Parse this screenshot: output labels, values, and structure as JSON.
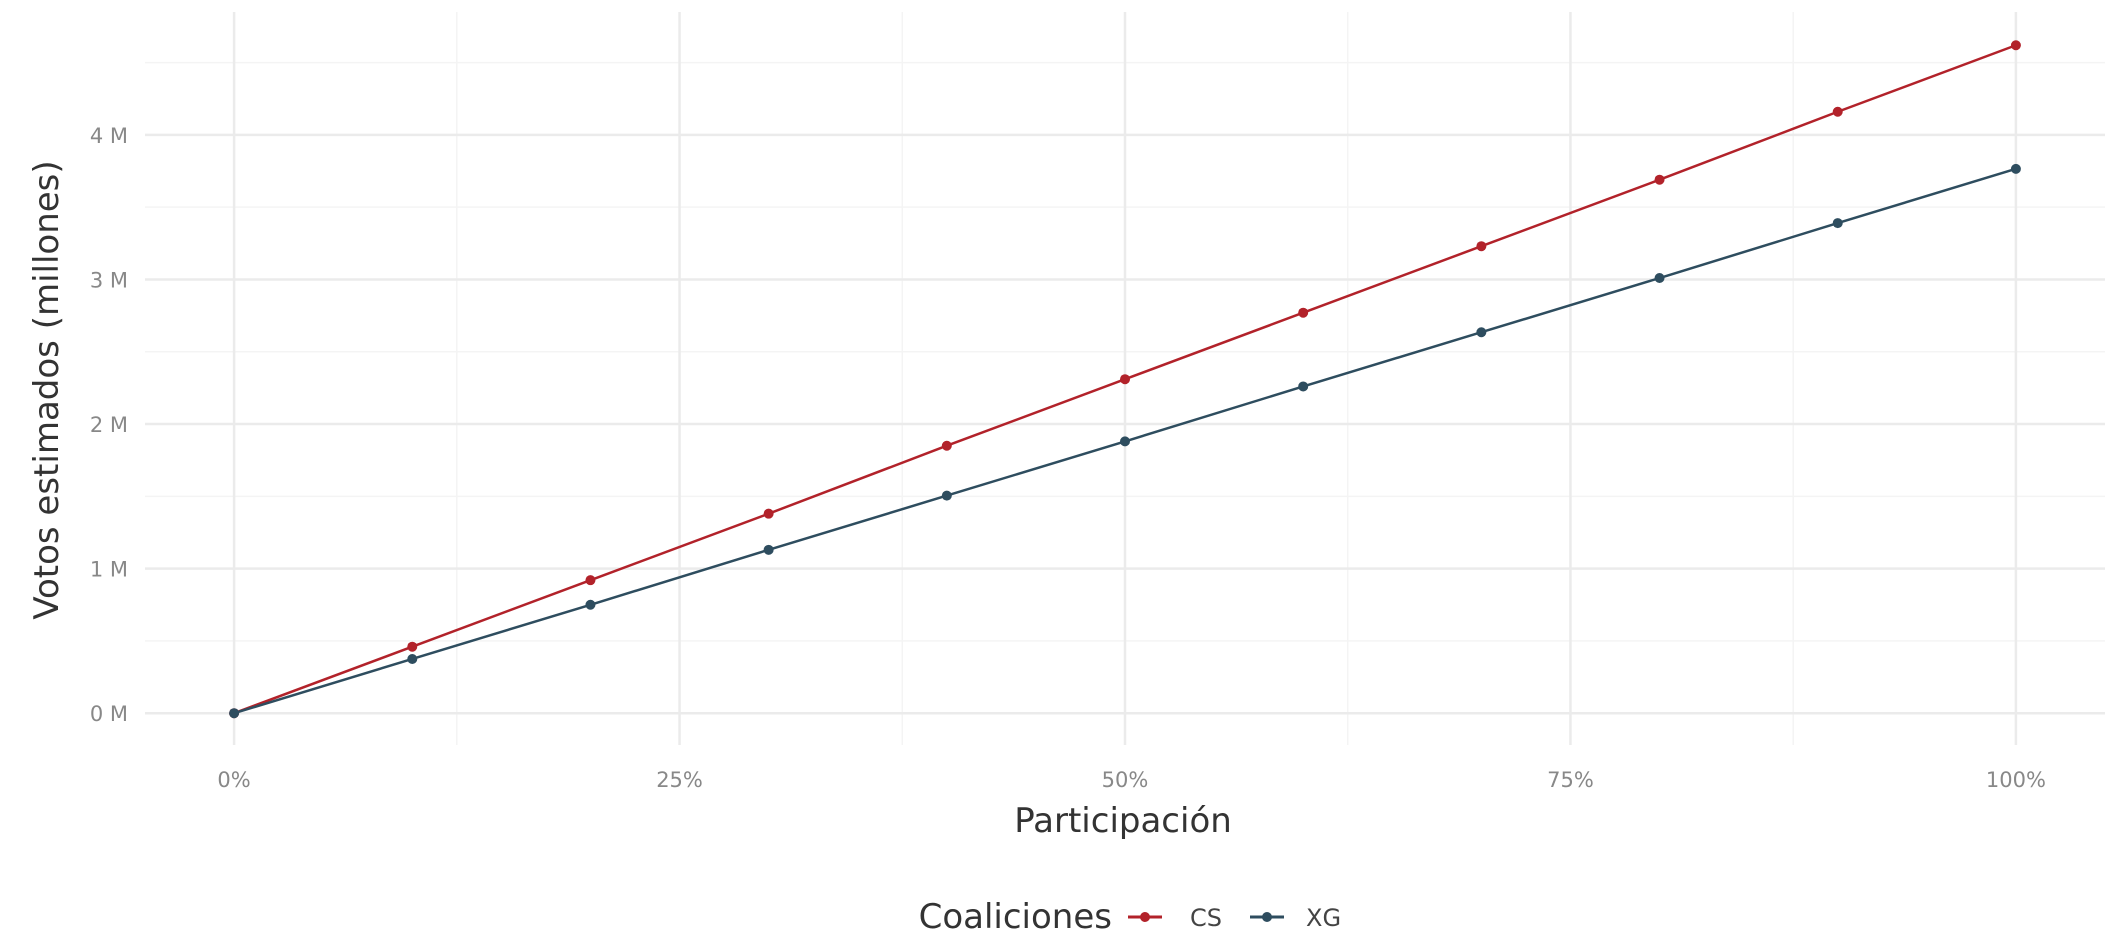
{
  "chart_data": {
    "type": "line",
    "xlabel": "Participación",
    "ylabel": "Votos estimados (millones)",
    "x": [
      0,
      10,
      20,
      30,
      40,
      50,
      60,
      70,
      80,
      90,
      100
    ],
    "series": [
      {
        "name": "CS",
        "color": "#b2222a",
        "values": [
          0,
          0.46,
          0.92,
          1.38,
          1.85,
          2.31,
          2.77,
          3.23,
          3.69,
          4.16,
          4.62
        ]
      },
      {
        "name": "XG",
        "color": "#2e4d5f",
        "values": [
          0,
          0.375,
          0.75,
          1.13,
          1.505,
          1.88,
          2.26,
          2.635,
          3.01,
          3.39,
          3.765
        ]
      }
    ],
    "xlim": [
      -5,
      105
    ],
    "ylim": [
      -0.22,
      4.85
    ],
    "x_ticks": [
      {
        "value": 0,
        "label": "0%"
      },
      {
        "value": 25,
        "label": "25%"
      },
      {
        "value": 50,
        "label": "50%"
      },
      {
        "value": 75,
        "label": "75%"
      },
      {
        "value": 100,
        "label": "100%"
      }
    ],
    "x_minor_ticks": [
      12.5,
      37.5,
      62.5,
      87.5
    ],
    "y_ticks": [
      {
        "value": 0,
        "label": "0 M"
      },
      {
        "value": 1,
        "label": "1 M"
      },
      {
        "value": 2,
        "label": "2 M"
      },
      {
        "value": 3,
        "label": "3 M"
      },
      {
        "value": 4,
        "label": "4 M"
      }
    ],
    "y_minor_ticks": [
      0.5,
      1.5,
      2.5,
      3.5,
      4.5
    ],
    "grid": true,
    "legend": {
      "title": "Coaliciones",
      "position": "bottom"
    }
  }
}
